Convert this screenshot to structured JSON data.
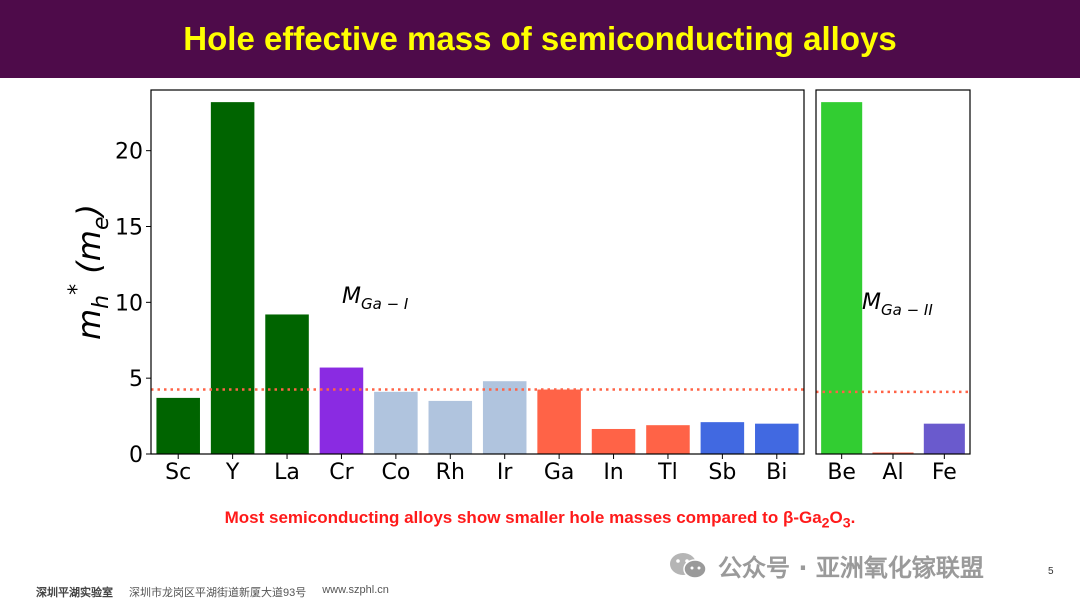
{
  "header": {
    "title": "Hole effective mass of semiconducting alloys"
  },
  "caption": {
    "prefix": "Most semiconducting alloys show smaller hole masses compared to ",
    "beta": "β",
    "ga": "-Ga",
    "sub1": "2",
    "o": "O",
    "sub2": "3",
    "end": "."
  },
  "watermark": {
    "text": "公众号 · 亚洲氧化镓联盟"
  },
  "page_number": "5",
  "footer": {
    "org": "深圳平湖实验室",
    "address": "深圳市龙岗区平湖街道新厦大道93号",
    "url": "www.szphl.cn"
  },
  "chart_data": [
    {
      "type": "bar",
      "panel_label": {
        "base": "M",
        "sub": "Ga − I"
      },
      "ylabel": {
        "base": "m",
        "sub": "h",
        "sup": "*",
        "unit_base": "m",
        "unit_sub": "e"
      },
      "ylim": [
        0,
        24
      ],
      "yticks": [
        0,
        5,
        10,
        15,
        20
      ],
      "categories": [
        "Sc",
        "Y",
        "La",
        "Cr",
        "Co",
        "Rh",
        "Ir",
        "Ga",
        "In",
        "Tl",
        "Sb",
        "Bi"
      ],
      "values": [
        3.7,
        23.2,
        9.2,
        5.7,
        4.1,
        3.5,
        4.8,
        4.25,
        1.65,
        1.9,
        2.1,
        2.0
      ],
      "colors": [
        "#006400",
        "#006400",
        "#006400",
        "#8a2be2",
        "#b0c4de",
        "#b0c4de",
        "#b0c4de",
        "#ff6347",
        "#ff6347",
        "#ff6347",
        "#4169e1",
        "#4169e1"
      ],
      "reference_line": {
        "value": 4.25,
        "color": "#ff6347",
        "style": "dotted"
      },
      "grid": false
    },
    {
      "type": "bar",
      "panel_label": {
        "base": "M",
        "sub": "Ga − II"
      },
      "ylim": [
        0,
        24
      ],
      "categories": [
        "Be",
        "Al",
        "Fe"
      ],
      "values": [
        23.2,
        0.1,
        2.0
      ],
      "colors": [
        "#32cd32",
        "#ff6347",
        "#6a5acd"
      ],
      "reference_line": {
        "value": 4.1,
        "color": "#ff6347",
        "style": "dotted"
      },
      "grid": false
    }
  ]
}
